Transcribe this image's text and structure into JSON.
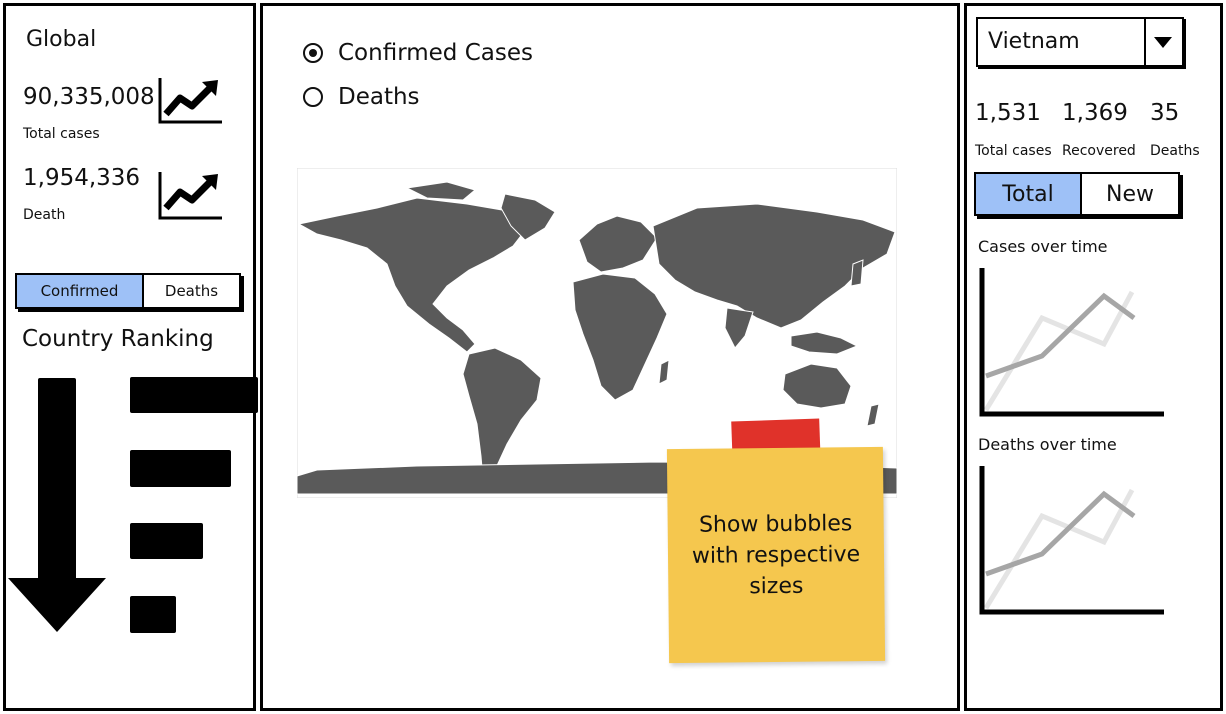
{
  "global": {
    "title": "Global",
    "total_cases_value": "90,335,008",
    "total_cases_label": "Total cases",
    "death_value": "1,954,336",
    "death_label": "Death",
    "toggle": {
      "confirmed": "Confirmed",
      "deaths": "Deaths",
      "active": "confirmed"
    },
    "ranking_title": "Country Ranking",
    "trend_icon": "trend-up-chart-icon",
    "sort_icon": "arrow-down-icon"
  },
  "map_panel": {
    "radio_confirmed": "Confirmed Cases",
    "radio_deaths": "Deaths",
    "selected": "confirmed",
    "note_text": "Show bubbles with respective sizes"
  },
  "country": {
    "selected": "Vietnam",
    "stats": [
      {
        "value": "1,531",
        "label": "Total cases"
      },
      {
        "value": "1,369",
        "label": "Recovered"
      },
      {
        "value": "35",
        "label": "Deaths"
      }
    ],
    "toggle": {
      "total": "Total",
      "new": "New",
      "active": "total"
    },
    "cases_title": "Cases over time",
    "deaths_title": "Deaths over time"
  },
  "colors": {
    "accent": "#9ec1f7",
    "map_land": "#5a5a5a",
    "note": "#f5c74e",
    "tape": "#e0322a"
  }
}
